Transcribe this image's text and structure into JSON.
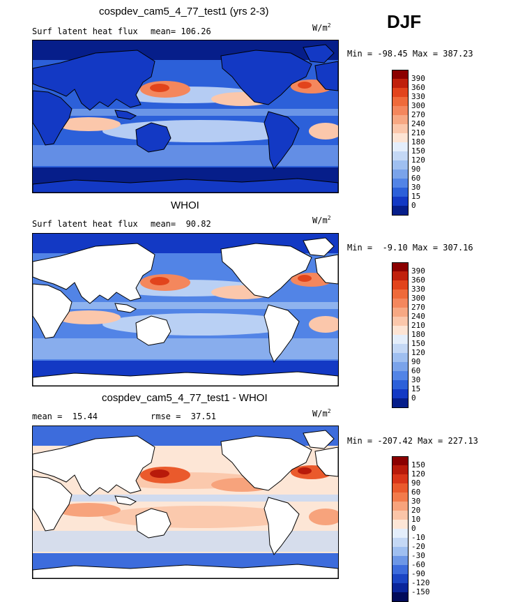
{
  "season": "DJF",
  "units_base": "W/m",
  "units_exp": "2",
  "panels": [
    {
      "title": "cospdev_cam5_4_77_test1 (yrs 2-3)",
      "left_label": "Surf latent heat flux",
      "center_label": "mean= 106.26",
      "minmax": "Min = -98.45 Max = 387.23",
      "colorbar_ticks": [
        "390",
        "360",
        "330",
        "300",
        "270",
        "240",
        "210",
        "180",
        "150",
        "120",
        "90",
        "60",
        "30",
        "15",
        "0"
      ],
      "colorbar_colors": [
        "#8b0000",
        "#c0200c",
        "#e2441c",
        "#ef6a3a",
        "#f4875d",
        "#f7a883",
        "#fbc7ab",
        "#fde4d4",
        "#e4eefb",
        "#c4d8f5",
        "#9fbff0",
        "#7aa3ea",
        "#5284e6",
        "#2c60d9",
        "#1339c4",
        "#061e8a"
      ],
      "map_palette": {
        "ocean_base": "#2c60d9",
        "mid": "#7aa3ea",
        "light": "#c4d8f5",
        "warm1": "#fbc7ab",
        "warm2": "#f4875d",
        "warm3": "#e2441c",
        "polar": "#061e8a",
        "land": "#1339c4"
      }
    },
    {
      "title": "WHOI",
      "left_label": "Surf latent heat flux",
      "center_label": "mean=  90.82",
      "minmax": "Min =  -9.10 Max = 307.16",
      "colorbar_ticks": [
        "390",
        "360",
        "330",
        "300",
        "270",
        "240",
        "210",
        "180",
        "150",
        "120",
        "90",
        "60",
        "30",
        "15",
        "0"
      ],
      "colorbar_colors": [
        "#8b0000",
        "#c0200c",
        "#e2441c",
        "#ef6a3a",
        "#f4875d",
        "#f7a883",
        "#fbc7ab",
        "#fde4d4",
        "#e4eefb",
        "#c4d8f5",
        "#9fbff0",
        "#7aa3ea",
        "#5284e6",
        "#2c60d9",
        "#1339c4",
        "#061e8a"
      ],
      "map_palette": {
        "ocean_base": "#5284e6",
        "mid": "#9fbff0",
        "light": "#c4d8f5",
        "warm1": "#fbc7ab",
        "warm2": "#f4875d",
        "warm3": "#e2441c",
        "polar": "#1339c4",
        "land": "#ffffff"
      }
    },
    {
      "title": "cospdev_cam5_4_77_test1 - WHOI",
      "left_label": "mean =  15.44",
      "center_label": "rmse =  37.51",
      "minmax": "Min = -207.42 Max = 227.13",
      "colorbar_ticks": [
        "150",
        "120",
        "90",
        "60",
        "30",
        "20",
        "10",
        "0",
        "-10",
        "-20",
        "-30",
        "-60",
        "-90",
        "-120",
        "-150"
      ],
      "colorbar_colors": [
        "#8b0000",
        "#b81a0a",
        "#d93518",
        "#ea5a2c",
        "#f27b4b",
        "#f7a37c",
        "#fbc5a8",
        "#fde6d6",
        "#e4eefb",
        "#c4d8f5",
        "#9fbff0",
        "#6d97e6",
        "#3d6cdc",
        "#1b45c4",
        "#0a259a",
        "#020b5a"
      ],
      "map_palette": {
        "ocean_base": "#fde6d6",
        "mid": "#c4d8f5",
        "light": "#fbc5a8",
        "warm1": "#f7a37c",
        "warm2": "#ea5a2c",
        "warm3": "#b81a0a",
        "polar": "#3d6cdc",
        "land": "#ffffff"
      }
    }
  ]
}
